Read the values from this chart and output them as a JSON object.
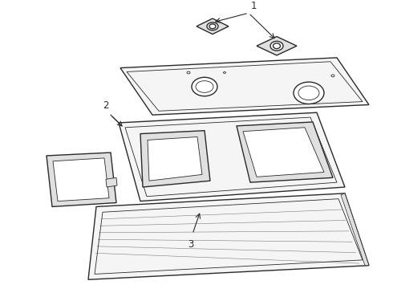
{
  "background_color": "#ffffff",
  "line_color": "#2a2a2a",
  "fill_light": "#f5f5f5",
  "fill_shade": "#e0e0e0",
  "fill_dark": "#c8c8c8",
  "label_1": "1",
  "label_2": "2",
  "label_3": "3",
  "lw_main": 1.0,
  "lw_inner": 0.6
}
